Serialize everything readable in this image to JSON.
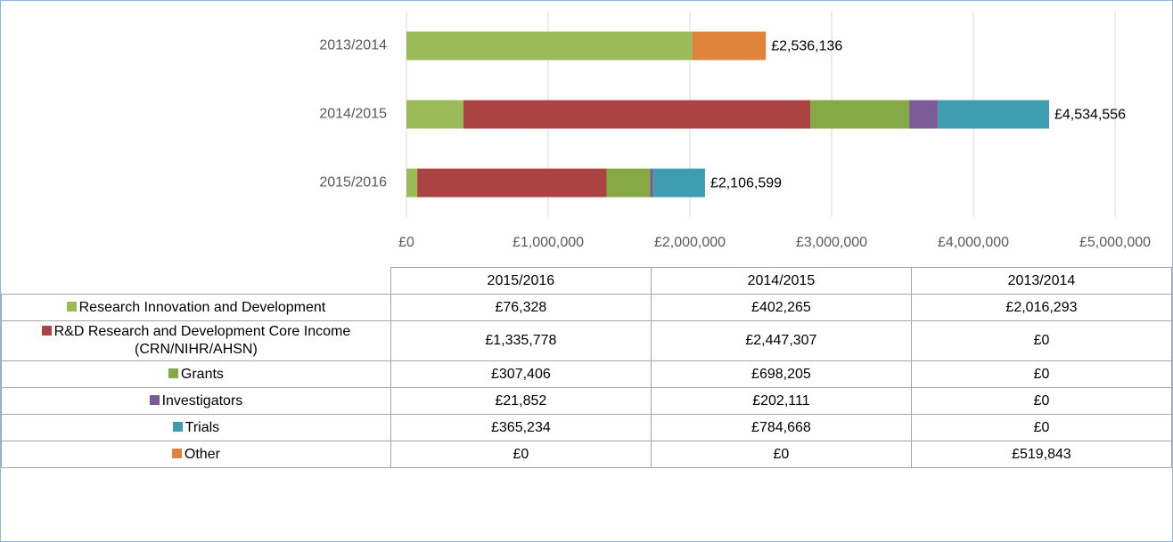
{
  "chart_data": {
    "type": "stacked_barh",
    "categories": [
      "2015/2016",
      "2014/2015",
      "2013/2014"
    ],
    "series": [
      {
        "name": "Research Innovation and Development",
        "color": "#9bbb59",
        "values": [
          76328,
          402265,
          2016293
        ],
        "value_labels": [
          "£76,328",
          "£402,265",
          "£2,016,293"
        ]
      },
      {
        "name": "R&D Research and Development Core Income (CRN/NIHR/AHSN)",
        "color": "#ab4343",
        "values": [
          1335778,
          2447307,
          0
        ],
        "value_labels": [
          "£1,335,778",
          "£2,447,307",
          "£0"
        ]
      },
      {
        "name": "Grants",
        "color": "#86a845",
        "values": [
          307406,
          698205,
          0
        ],
        "value_labels": [
          "£307,406",
          "£698,205",
          "£0"
        ]
      },
      {
        "name": "Investigators",
        "color": "#7b5c99",
        "values": [
          21852,
          202111,
          0
        ],
        "value_labels": [
          "£21,852",
          "£202,111",
          "£0"
        ]
      },
      {
        "name": "Trials",
        "color": "#3f9db1",
        "values": [
          365234,
          784668,
          0
        ],
        "value_labels": [
          "£365,234",
          "£784,668",
          "£0"
        ]
      },
      {
        "name": "Other",
        "color": "#e0843c",
        "values": [
          0,
          0,
          519843
        ],
        "value_labels": [
          "£0",
          "£0",
          "£519,843"
        ]
      }
    ],
    "totals": [
      2106599,
      4534556,
      2536136
    ],
    "total_labels": [
      "£2,106,599",
      "£4,534,556",
      "£2,536,136"
    ],
    "xlim": [
      0,
      5000000
    ],
    "xticks": [
      {
        "value": 0,
        "label": "£0"
      },
      {
        "value": 1000000,
        "label": "£1,000,000"
      },
      {
        "value": 2000000,
        "label": "£2,000,000"
      },
      {
        "value": 3000000,
        "label": "£3,000,000"
      },
      {
        "value": 4000000,
        "label": "£4,000,000"
      },
      {
        "value": 5000000,
        "label": "£5,000,000"
      }
    ],
    "grid": true
  }
}
